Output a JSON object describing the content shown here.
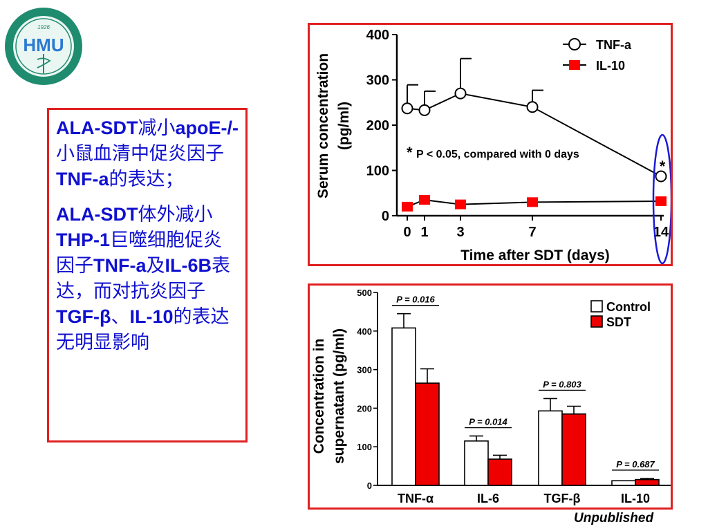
{
  "logo": {
    "text": "HMU",
    "year": "1926"
  },
  "text_box": {
    "para1": [
      {
        "t": "ALA-SDT",
        "b": true
      },
      {
        "t": "减小",
        "b": false
      },
      {
        "t": "apoE-/-",
        "b": true
      },
      {
        "t": "小鼠血清中促炎因子",
        "b": false
      },
      {
        "t": "TNF-a",
        "b": true
      },
      {
        "t": "的表达；",
        "b": false
      }
    ],
    "para2": [
      {
        "t": "ALA-SDT",
        "b": true
      },
      {
        "t": "体外减小",
        "b": false
      },
      {
        "t": "THP-1",
        "b": true
      },
      {
        "t": "巨噬细胞促炎因子",
        "b": false
      },
      {
        "t": "TNF-a",
        "b": true
      },
      {
        "t": "及",
        "b": false
      },
      {
        "t": "IL-6B",
        "b": true
      },
      {
        "t": "表达，而对抗炎因子",
        "b": false
      },
      {
        "t": "TGF-β",
        "b": true
      },
      {
        "t": "、",
        "b": false
      },
      {
        "t": "IL-10",
        "b": true
      },
      {
        "t": "的表达无明显影响",
        "b": false
      }
    ]
  },
  "chart_data": [
    {
      "type": "line",
      "xlabel": "Time after SDT (days)",
      "ylabel_line1": "Serum concentration",
      "ylabel_line2": "(pg/ml)",
      "ylim": [
        0,
        400
      ],
      "yticks": [
        0,
        100,
        200,
        300,
        400
      ],
      "xticks": [
        0,
        1,
        3,
        7,
        14
      ],
      "x": [
        0,
        1,
        3,
        7,
        14
      ],
      "series": [
        {
          "name": "TNF-a",
          "values": [
            237,
            233,
            270,
            240,
            87
          ],
          "error": [
            52,
            42,
            77,
            37,
            0
          ],
          "marker": "open-circle",
          "color": "#000000"
        },
        {
          "name": "IL-10",
          "values": [
            20,
            35,
            25,
            30,
            32
          ],
          "error": [
            0,
            0,
            0,
            0,
            0
          ],
          "marker": "square",
          "color": "#ff0000"
        }
      ],
      "annotation_star": "*",
      "annotation_text": "P < 0.05, compared with 0 days",
      "significant_star": "*",
      "legend_placement": "top-right"
    },
    {
      "type": "bar",
      "ylabel_line1": "Concentration in",
      "ylabel_line2": "supernatant (pg/ml)",
      "ylim": [
        0,
        500
      ],
      "yticks": [
        0,
        100,
        200,
        300,
        400,
        500
      ],
      "categories": [
        "TNF-α",
        "IL-6",
        "TGF-β",
        "IL-10"
      ],
      "series": [
        {
          "name": "Control",
          "values": [
            408,
            115,
            193,
            12
          ],
          "error": [
            37,
            13,
            32,
            0
          ],
          "color": "#ffffff"
        },
        {
          "name": "SDT",
          "values": [
            265,
            68,
            185,
            15
          ],
          "error": [
            37,
            10,
            20,
            3
          ],
          "color": "#ee0000"
        }
      ],
      "pvalues": [
        "P = 0.016",
        "P = 0.014",
        "P = 0.803",
        "P = 0.687"
      ],
      "legend_placement": "top-right"
    }
  ],
  "footer": {
    "note": "Unpublished"
  }
}
